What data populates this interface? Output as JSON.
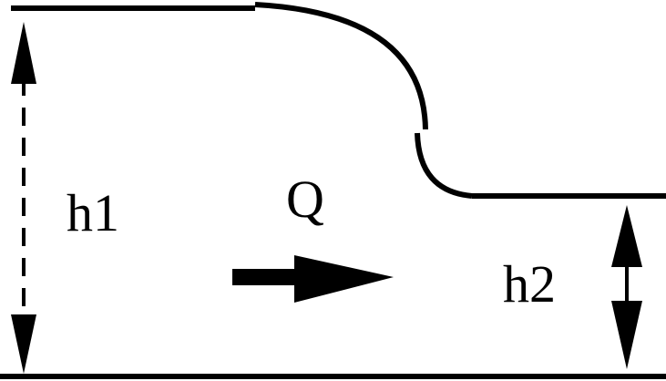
{
  "labels": {
    "upstream_depth": "h1",
    "flow_rate": "Q",
    "downstream_depth": "h2"
  },
  "colors": {
    "stroke": "#000000",
    "background": "#ffffff"
  }
}
